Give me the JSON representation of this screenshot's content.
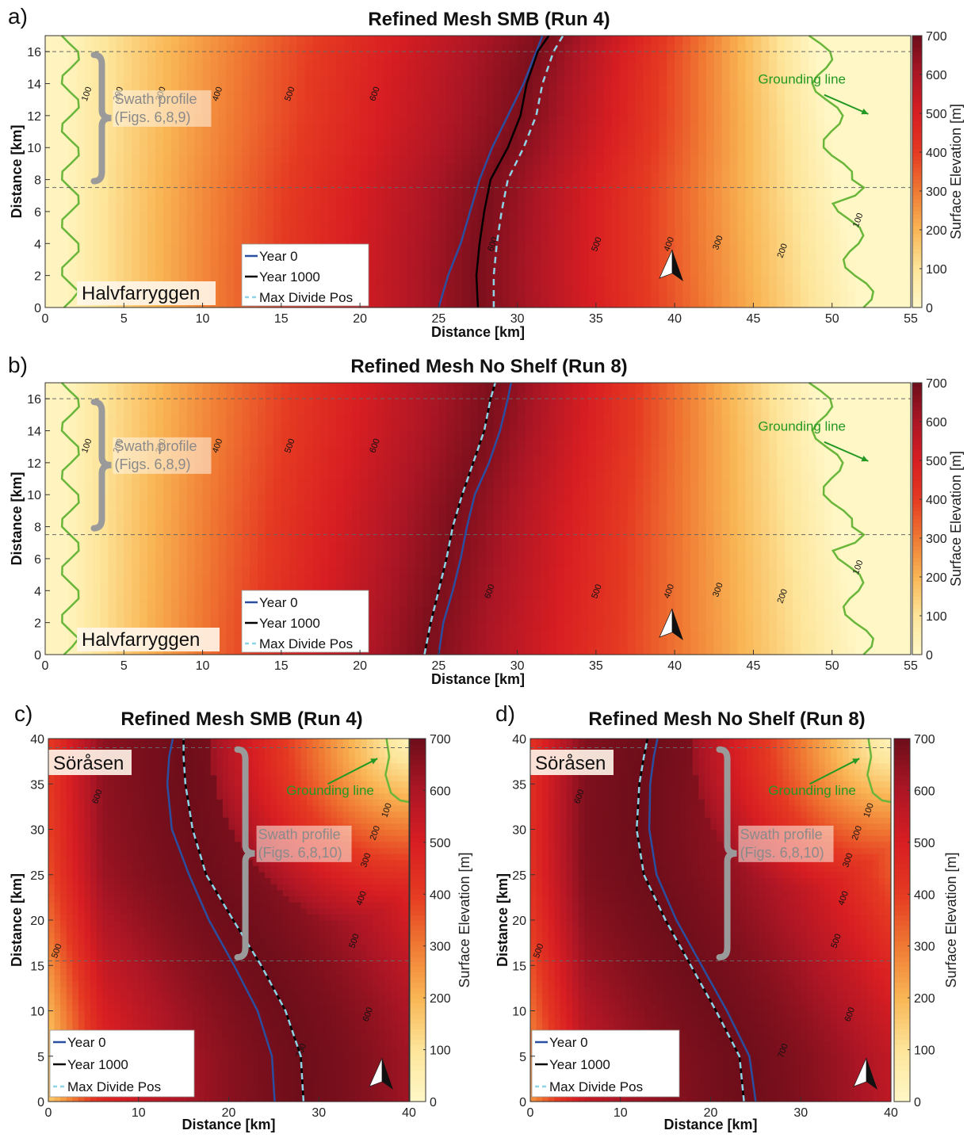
{
  "chart_data": [
    {
      "type": "heatmap",
      "panel": "a)",
      "title": "Refined Mesh SMB (Run 4)",
      "xlabel": "Distance [km]",
      "ylabel": "Distance [km]",
      "colorbar_label": "Surface Elevation [m]",
      "xlim": [
        0,
        55
      ],
      "ylim": [
        0,
        17
      ],
      "clim": [
        0,
        700
      ],
      "xticks": [
        0,
        5,
        10,
        15,
        20,
        25,
        30,
        35,
        40,
        45,
        50,
        55
      ],
      "yticks": [
        0,
        2,
        4,
        6,
        8,
        10,
        12,
        14,
        16
      ],
      "cticks": [
        0,
        100,
        200,
        300,
        400,
        500,
        600,
        700
      ],
      "location_label": "Halvfarryggen",
      "swath_label": [
        "Swath profile",
        "(Figs. 6,8,9)"
      ],
      "swath_y_range": [
        7.5,
        16
      ],
      "grounding_label": "Grounding line",
      "contour_labels": [
        {
          "value": "100",
          "x": 2.8,
          "y": 13.3
        },
        {
          "value": "200",
          "x": 4.8,
          "y": 13.3
        },
        {
          "value": "300",
          "x": 7.5,
          "y": 13.3
        },
        {
          "value": "400",
          "x": 11.1,
          "y": 13.3
        },
        {
          "value": "500",
          "x": 15.7,
          "y": 13.3
        },
        {
          "value": "600",
          "x": 21.1,
          "y": 13.3
        },
        {
          "value": "600",
          "x": 28.6,
          "y": 3.9
        },
        {
          "value": "500",
          "x": 35.2,
          "y": 3.9
        },
        {
          "value": "400",
          "x": 39.8,
          "y": 3.9
        },
        {
          "value": "300",
          "x": 42.9,
          "y": 4.0
        },
        {
          "value": "200",
          "x": 47.0,
          "y": 3.5
        },
        {
          "value": "100",
          "x": 51.8,
          "y": 5.4
        }
      ],
      "legend": [
        "Year 0",
        "Year 1000",
        "Max Divide Pos"
      ],
      "series": [
        {
          "name": "Year 0",
          "x": [
            25.0,
            25.6,
            26.4,
            27.0,
            27.6,
            28.4,
            29.4,
            30.4,
            31.2,
            31.6
          ],
          "y": [
            0,
            2,
            4,
            6,
            8,
            10,
            12,
            14,
            16,
            17
          ]
        },
        {
          "name": "Year 1000",
          "x": [
            27.5,
            27.4,
            27.6,
            27.9,
            28.3,
            29.4,
            30.2,
            30.6,
            31.3,
            32.0
          ],
          "y": [
            0,
            2,
            4,
            6,
            8,
            10,
            12,
            14,
            16,
            17
          ]
        },
        {
          "name": "Max Divide Pos",
          "x": [
            28.5,
            28.5,
            28.7,
            29.0,
            29.4,
            30.4,
            31.2,
            31.6,
            32.3,
            32.9
          ],
          "y": [
            0,
            2,
            4,
            6,
            8,
            10,
            12,
            14,
            16,
            17
          ]
        }
      ]
    },
    {
      "type": "heatmap",
      "panel": "b)",
      "title": "Refined Mesh No Shelf (Run 8)",
      "xlabel": "Distance [km]",
      "ylabel": "Distance [km]",
      "colorbar_label": "Surface Elevation [m]",
      "xlim": [
        0,
        55
      ],
      "ylim": [
        0,
        17
      ],
      "clim": [
        0,
        700
      ],
      "xticks": [
        0,
        5,
        10,
        15,
        20,
        25,
        30,
        35,
        40,
        45,
        50,
        55
      ],
      "yticks": [
        0,
        2,
        4,
        6,
        8,
        10,
        12,
        14,
        16
      ],
      "cticks": [
        0,
        100,
        200,
        300,
        400,
        500,
        600,
        700
      ],
      "location_label": "Halvfarryggen",
      "swath_label": [
        "Swath profile",
        "(Figs. 6,8,9)"
      ],
      "swath_y_range": [
        7.5,
        16
      ],
      "grounding_label": "Grounding line",
      "contour_labels": [
        {
          "value": "100",
          "x": 2.8,
          "y": 13.0
        },
        {
          "value": "200",
          "x": 4.8,
          "y": 13.0
        },
        {
          "value": "300",
          "x": 7.5,
          "y": 13.0
        },
        {
          "value": "400",
          "x": 11.1,
          "y": 13.0
        },
        {
          "value": "500",
          "x": 15.7,
          "y": 13.0
        },
        {
          "value": "600",
          "x": 21.1,
          "y": 13.0
        },
        {
          "value": "600",
          "x": 28.4,
          "y": 3.9
        },
        {
          "value": "500",
          "x": 35.2,
          "y": 3.9
        },
        {
          "value": "400",
          "x": 39.8,
          "y": 3.9
        },
        {
          "value": "300",
          "x": 42.9,
          "y": 4.0
        },
        {
          "value": "200",
          "x": 47.0,
          "y": 3.6
        },
        {
          "value": "100",
          "x": 51.8,
          "y": 5.4
        }
      ],
      "legend": [
        "Year 0",
        "Year 1000",
        "Max Divide Pos"
      ],
      "series": [
        {
          "name": "Year 0",
          "x": [
            25.0,
            25.3,
            25.9,
            26.4,
            26.8,
            27.3,
            28.2,
            28.9,
            29.4,
            29.6
          ],
          "y": [
            0,
            2,
            4,
            6,
            8,
            10,
            12,
            14,
            16,
            17
          ]
        },
        {
          "name": "Year 1000",
          "x": [
            24.1,
            24.5,
            25.0,
            25.5,
            25.9,
            26.5,
            27.2,
            27.9,
            28.3,
            28.6
          ],
          "y": [
            0,
            2,
            4,
            6,
            8,
            10,
            12,
            14,
            16,
            17
          ]
        },
        {
          "name": "Max Divide Pos",
          "x": [
            24.1,
            24.5,
            25.0,
            25.5,
            25.9,
            26.5,
            27.2,
            27.9,
            28.3,
            28.6
          ],
          "y": [
            0,
            2,
            4,
            6,
            8,
            10,
            12,
            14,
            16,
            17
          ]
        }
      ]
    },
    {
      "type": "heatmap",
      "panel": "c)",
      "title": "Refined Mesh SMB (Run 4)",
      "xlabel": "Distance [km]",
      "ylabel": "Distance [km]",
      "colorbar_label": "Surface Elevation [m]",
      "xlim": [
        0,
        40
      ],
      "ylim": [
        0,
        40
      ],
      "clim": [
        0,
        700
      ],
      "xticks": [
        0,
        10,
        20,
        30,
        40
      ],
      "yticks": [
        0,
        5,
        10,
        15,
        20,
        25,
        30,
        35,
        40
      ],
      "cticks": [
        0,
        100,
        200,
        300,
        400,
        500,
        600,
        700
      ],
      "location_label": "Söråsen",
      "swath_label": [
        "Swath profile",
        "(Figs. 6,8,10)"
      ],
      "swath_y_range": [
        15.5,
        39
      ],
      "grounding_label": "Grounding line",
      "contour_labels": [
        {
          "value": "600",
          "x": 5.7,
          "y": 33.5
        },
        {
          "value": "500",
          "x": 1.2,
          "y": 16.5
        },
        {
          "value": "700",
          "x": 28.3,
          "y": 5.5
        },
        {
          "value": "600",
          "x": 35.7,
          "y": 9.5
        },
        {
          "value": "500",
          "x": 34.2,
          "y": 17.6
        },
        {
          "value": "400",
          "x": 35.0,
          "y": 22.3
        },
        {
          "value": "300",
          "x": 35.5,
          "y": 26.5
        },
        {
          "value": "200",
          "x": 36.5,
          "y": 29.5
        },
        {
          "value": "100",
          "x": 37.8,
          "y": 32.0
        }
      ],
      "legend": [
        "Year 0",
        "Year 1000",
        "Max Divide Pos"
      ],
      "series": [
        {
          "name": "Year 0",
          "x": [
            25.1,
            24.8,
            23.2,
            20.6,
            17.8,
            15.6,
            13.7,
            13.2,
            13.4,
            13.8
          ],
          "y": [
            0,
            5,
            10,
            15,
            20,
            25,
            30,
            35,
            38,
            40
          ]
        },
        {
          "name": "Year 1000",
          "x": [
            28.3,
            28.0,
            26.3,
            23.6,
            20.5,
            17.5,
            16.0,
            15.2,
            15.0,
            15.0
          ],
          "y": [
            0,
            5,
            10,
            15,
            20,
            25,
            30,
            35,
            38,
            40
          ]
        },
        {
          "name": "Max Divide Pos",
          "x": [
            28.3,
            28.0,
            26.3,
            23.6,
            20.5,
            17.5,
            16.0,
            15.2,
            15.0,
            15.0
          ],
          "y": [
            0,
            5,
            10,
            15,
            20,
            25,
            30,
            35,
            38,
            40
          ]
        }
      ]
    },
    {
      "type": "heatmap",
      "panel": "d)",
      "title": "Refined Mesh No Shelf (Run 8)",
      "xlabel": "Distance [km]",
      "ylabel": "Distance [km]",
      "colorbar_label": "Surface Elevation [m]",
      "xlim": [
        0,
        40
      ],
      "ylim": [
        0,
        40
      ],
      "clim": [
        0,
        700
      ],
      "xticks": [
        0,
        10,
        20,
        30,
        40
      ],
      "yticks": [
        0,
        5,
        10,
        15,
        20,
        25,
        30,
        35,
        40
      ],
      "cticks": [
        0,
        100,
        200,
        300,
        400,
        500,
        600,
        700
      ],
      "location_label": "Söråsen",
      "swath_label": [
        "Swath profile",
        "(Figs. 6,8,10)"
      ],
      "swath_y_range": [
        15.5,
        39
      ],
      "grounding_label": "Grounding line",
      "contour_labels": [
        {
          "value": "600",
          "x": 5.7,
          "y": 33.5
        },
        {
          "value": "500",
          "x": 1.2,
          "y": 16.5
        },
        {
          "value": "700",
          "x": 28.3,
          "y": 5.5
        },
        {
          "value": "600",
          "x": 35.7,
          "y": 9.5
        },
        {
          "value": "500",
          "x": 34.2,
          "y": 17.6
        },
        {
          "value": "400",
          "x": 35.0,
          "y": 22.3
        },
        {
          "value": "300",
          "x": 35.5,
          "y": 26.5
        },
        {
          "value": "200",
          "x": 36.5,
          "y": 29.5
        },
        {
          "value": "100",
          "x": 37.8,
          "y": 32.0
        }
      ],
      "legend": [
        "Year 0",
        "Year 1000",
        "Max Divide Pos"
      ],
      "series": [
        {
          "name": "Year 0",
          "x": [
            25.0,
            24.3,
            21.8,
            19.0,
            16.2,
            14.0,
            13.2,
            13.3,
            13.7,
            14.1
          ],
          "y": [
            0,
            5,
            10,
            15,
            20,
            25,
            30,
            35,
            38,
            40
          ]
        },
        {
          "name": "Year 1000",
          "x": [
            23.7,
            23.2,
            20.6,
            17.8,
            15.0,
            12.6,
            11.8,
            12.1,
            12.6,
            13.0
          ],
          "y": [
            0,
            5,
            10,
            15,
            20,
            25,
            30,
            35,
            38,
            40
          ]
        },
        {
          "name": "Max Divide Pos",
          "x": [
            23.7,
            23.2,
            20.6,
            17.8,
            15.0,
            12.6,
            11.8,
            12.1,
            12.6,
            13.0
          ],
          "y": [
            0,
            5,
            10,
            15,
            20,
            25,
            30,
            35,
            38,
            40
          ]
        }
      ]
    }
  ],
  "colors": {
    "year0": "#2b4fa0",
    "year1000": "#000000",
    "max_divide": "#8fd3e6",
    "grounding": "#6ab63a",
    "swath": "#9a9a9a",
    "colormap": [
      "#fff8c8",
      "#fde59a",
      "#f9b655",
      "#f07a33",
      "#e53a22",
      "#d81e22",
      "#ad1625",
      "#6e0e1a"
    ]
  }
}
